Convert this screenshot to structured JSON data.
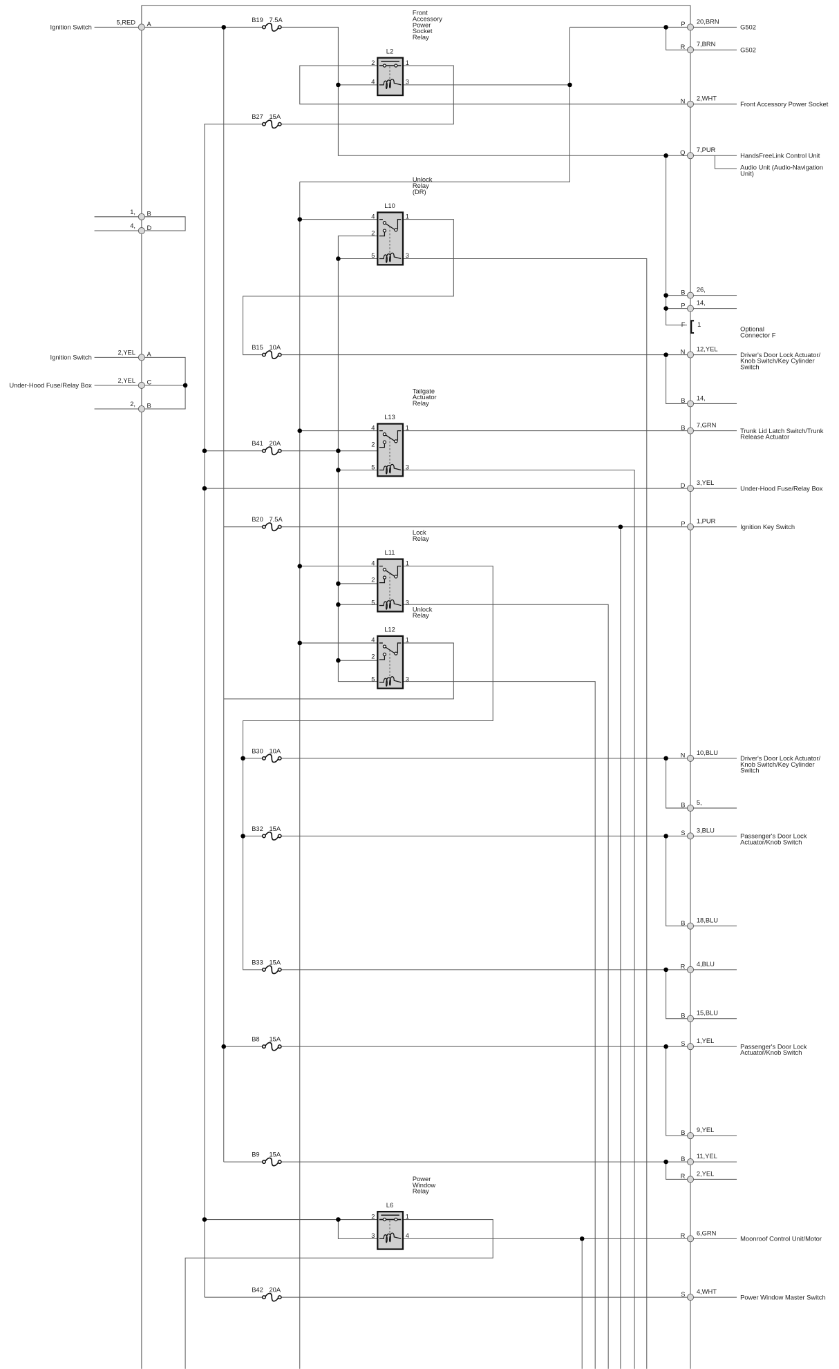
{
  "left_connectors": [
    {
      "pin": "A",
      "wire": "5,RED",
      "label": "Ignition Switch"
    },
    {
      "pin": "B",
      "wire": "1,",
      "label": ""
    },
    {
      "pin": "D",
      "wire": "4,",
      "label": ""
    },
    {
      "pin": "A",
      "wire": "2,YEL",
      "label": "Ignition Switch"
    },
    {
      "pin": "C",
      "wire": "2,YEL",
      "label": "Under-Hood Fuse/Relay Box"
    },
    {
      "pin": "B",
      "wire": "2,",
      "label": ""
    }
  ],
  "right_connectors": [
    {
      "pin": "P",
      "wire": "20,BRN",
      "label": [
        "G502"
      ]
    },
    {
      "pin": "R",
      "wire": "7,BRN",
      "label": [
        "G502"
      ]
    },
    {
      "pin": "N",
      "wire": "2,WHT",
      "label": [
        "Front Accessory Power Socket"
      ]
    },
    {
      "pin": "Q",
      "wire": "7,PUR",
      "label": [
        "HandsFreeLink Control Unit"
      ]
    },
    {
      "pin": "B",
      "wire": "26,",
      "label": []
    },
    {
      "pin": "P",
      "wire": "14,",
      "label": []
    },
    {
      "pin": "F",
      "wire": "1",
      "label": [
        "Optional",
        "Connector F"
      ]
    },
    {
      "pin": "N",
      "wire": "12,YEL",
      "label": [
        "Driver's Door Lock Actuator/",
        "Knob Switch/Key Cylinder",
        "Switch"
      ]
    },
    {
      "pin": "B",
      "wire": "14,",
      "label": []
    },
    {
      "pin": "B",
      "wire": "7,GRN",
      "label": [
        "Trunk Lid Latch Switch/Trunk",
        "Release Actuator"
      ]
    },
    {
      "pin": "D",
      "wire": "3,YEL",
      "label": [
        "Under-Hood Fuse/Relay Box"
      ]
    },
    {
      "pin": "P",
      "wire": "1,PUR",
      "label": [
        "Ignition Key Switch"
      ]
    },
    {
      "pin": "N",
      "wire": "10,BLU",
      "label": [
        "Driver's Door Lock Actuator/",
        "Knob Switch/Key Cylinder",
        "Switch"
      ]
    },
    {
      "pin": "B",
      "wire": "5,",
      "label": []
    },
    {
      "pin": "S",
      "wire": "3,BLU",
      "label": [
        "Passenger's Door Lock",
        "Actuator/Knob Switch"
      ]
    },
    {
      "pin": "B",
      "wire": "18,BLU",
      "label": []
    },
    {
      "pin": "R",
      "wire": "4,BLU",
      "label": []
    },
    {
      "pin": "B",
      "wire": "15,BLU",
      "label": []
    },
    {
      "pin": "S",
      "wire": "1,YEL",
      "label": [
        "Passenger's Door Lock",
        "Actuator/Knob Switch"
      ]
    },
    {
      "pin": "B",
      "wire": "9,YEL",
      "label": []
    },
    {
      "pin": "B",
      "wire": "11,YEL",
      "label": []
    },
    {
      "pin": "R",
      "wire": "2,YEL",
      "label": []
    },
    {
      "pin": "R",
      "wire": "6,GRN",
      "label": [
        "Moonroof Control Unit/Motor"
      ]
    },
    {
      "pin": "S",
      "wire": "4,WHT",
      "label": [
        "Power Window Master Switch"
      ]
    }
  ],
  "branch_label": [
    "Audio Unit (Audio-Navigation",
    "Unit)"
  ],
  "fuses": [
    {
      "id": "B19",
      "rating": "7.5A"
    },
    {
      "id": "B27",
      "rating": "15A"
    },
    {
      "id": "B15",
      "rating": "10A"
    },
    {
      "id": "B41",
      "rating": "20A"
    },
    {
      "id": "B20",
      "rating": "7.5A"
    },
    {
      "id": "B30",
      "rating": "10A"
    },
    {
      "id": "B32",
      "rating": "15A"
    },
    {
      "id": "B33",
      "rating": "15A"
    },
    {
      "id": "B8",
      "rating": "15A"
    },
    {
      "id": "B9",
      "rating": "15A"
    },
    {
      "id": "B42",
      "rating": "20A"
    }
  ],
  "relays": [
    {
      "id": "L2",
      "name": [
        "Front",
        "Accessory",
        "Power",
        "Socket",
        "Relay"
      ],
      "pins_left": [
        "2",
        "4"
      ],
      "pins_right": [
        "1",
        "3"
      ]
    },
    {
      "id": "L10",
      "name": [
        "Unlock",
        "Relay",
        "(DR)"
      ],
      "pins_left": [
        "4",
        "2",
        "5"
      ],
      "pins_right": [
        "1",
        "3"
      ]
    },
    {
      "id": "L13",
      "name": [
        "Tailgate",
        "Actuator",
        "Relay"
      ],
      "pins_left": [
        "4",
        "2",
        "5"
      ],
      "pins_right": [
        "1",
        "3"
      ]
    },
    {
      "id": "L11",
      "name": [
        "Lock",
        "Relay"
      ],
      "pins_left": [
        "4",
        "2",
        "5"
      ],
      "pins_right": [
        "1",
        "3"
      ]
    },
    {
      "id": "L12",
      "name": [
        "Unlock",
        "Relay"
      ],
      "pins_left": [
        "4",
        "2",
        "5"
      ],
      "pins_right": [
        "1",
        "3"
      ]
    },
    {
      "id": "L6",
      "name": [
        "Power",
        "Window",
        "Relay"
      ],
      "pins_left": [
        "2",
        "3"
      ],
      "pins_right": [
        "1",
        "4"
      ]
    }
  ]
}
